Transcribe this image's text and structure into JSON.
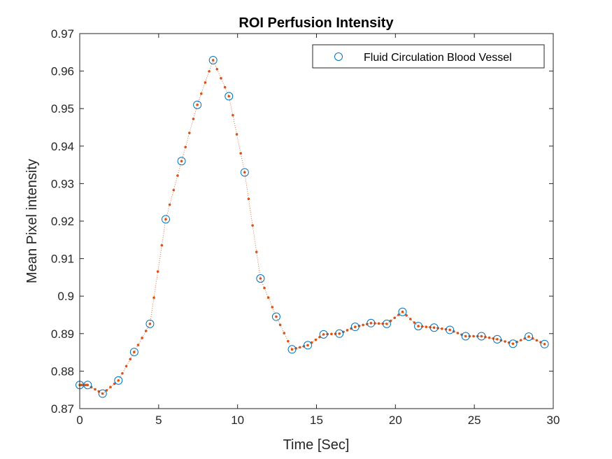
{
  "chart_data": {
    "type": "line",
    "title": "ROI Perfusion Intensity",
    "xlabel": "Time [Sec]",
    "ylabel": "Mean Pixel intensity",
    "xlim": [
      0,
      30
    ],
    "ylim": [
      0.87,
      0.97
    ],
    "xticks": [
      0,
      5,
      10,
      15,
      20,
      25,
      30
    ],
    "xtick_labels": [
      "0",
      "5",
      "10",
      "15",
      "20",
      "25",
      "30"
    ],
    "yticks": [
      0.87,
      0.88,
      0.89,
      0.9,
      0.91,
      0.92,
      0.93,
      0.94,
      0.95,
      0.96,
      0.97
    ],
    "ytick_labels": [
      "0.87",
      "0.88",
      "0.89",
      "0.9",
      "0.91",
      "0.92",
      "0.93",
      "0.94",
      "0.95",
      "0.96",
      "0.97"
    ],
    "grid": false,
    "legend_position": "top-right",
    "series": [
      {
        "name": "Fluid Circulation Blood Vessel",
        "style": "markers",
        "marker": "circle",
        "color": "#0072BD",
        "x": [
          0,
          0.5,
          1.45,
          2.45,
          3.45,
          4.45,
          5.45,
          6.45,
          7.45,
          8.45,
          9.45,
          10.45,
          11.45,
          12.45,
          13.45,
          14.45,
          15.45,
          16.45,
          17.45,
          18.45,
          19.45,
          20.45,
          21.45,
          22.45,
          23.45,
          24.45,
          25.45,
          26.45,
          27.45,
          28.45,
          29.45
        ],
        "y": [
          0.8763,
          0.8763,
          0.874,
          0.8775,
          0.8851,
          0.8926,
          0.9205,
          0.936,
          0.951,
          0.9629,
          0.9533,
          0.933,
          0.9047,
          0.8945,
          0.8858,
          0.8869,
          0.8898,
          0.89,
          0.8918,
          0.8928,
          0.8926,
          0.8958,
          0.892,
          0.8916,
          0.891,
          0.8893,
          0.8893,
          0.8885,
          0.8873,
          0.8892,
          0.8872
        ]
      },
      {
        "style": "dotted-line",
        "marker": "point",
        "color": "#D95319",
        "interpolated_from": "Fluid Circulation Blood Vessel",
        "points_per_interval": 4
      }
    ]
  }
}
